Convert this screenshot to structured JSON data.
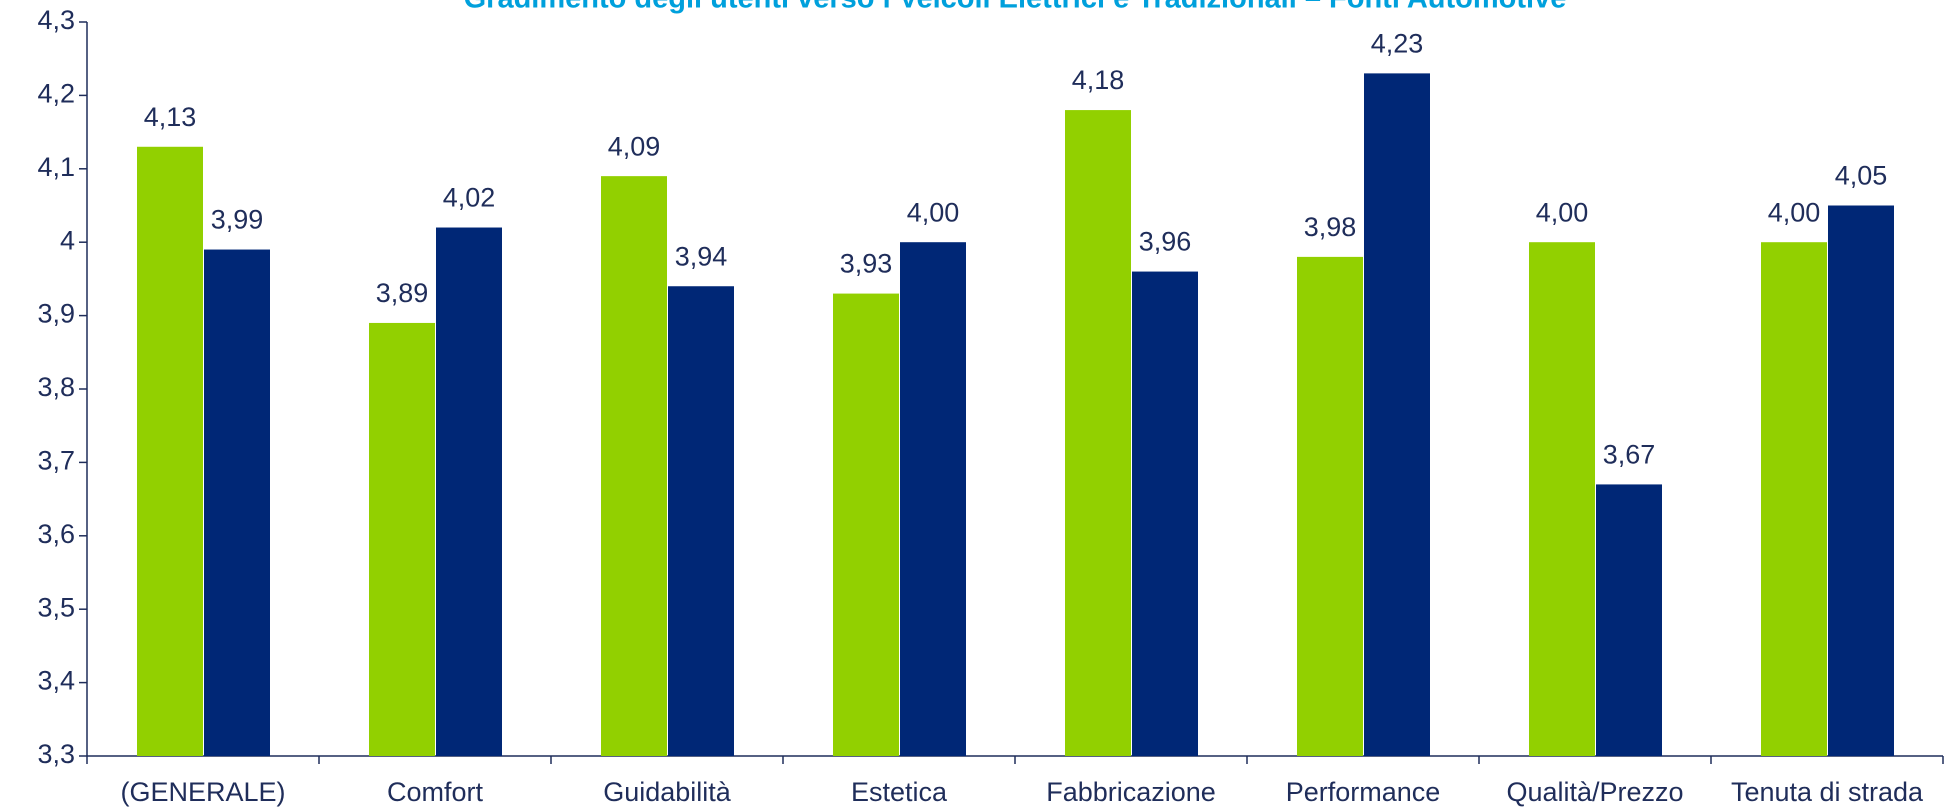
{
  "chart_data": {
    "type": "bar",
    "title": "Gradimento degli utenti verso i Veicoli Elettrici e Tradizionali – Fonti Automotive",
    "categories": [
      "(GENERALE)",
      "Comfort",
      "Guidabilità",
      "Estetica",
      "Fabbricazione",
      "Performance",
      "Qualità/Prezzo",
      "Tenuta di strada"
    ],
    "series": [
      {
        "color": "#92d000",
        "values": [
          4.13,
          3.89,
          4.09,
          3.93,
          4.18,
          3.98,
          4.0,
          4.0
        ],
        "value_labels": [
          "4,13",
          "3,89",
          "4,09",
          "3,93",
          "4,18",
          "3,98",
          "4,00",
          "4,00"
        ]
      },
      {
        "color": "#002776",
        "values": [
          3.99,
          4.02,
          3.94,
          4.0,
          3.96,
          4.23,
          3.67,
          4.05
        ],
        "value_labels": [
          "3,99",
          "4,02",
          "3,94",
          "4,00",
          "3,96",
          "4,23",
          "3,67",
          "4,05"
        ]
      }
    ],
    "ylim": [
      3.3,
      4.3
    ],
    "yticks": [
      {
        "value": 3.3,
        "label": "3,3"
      },
      {
        "value": 3.4,
        "label": "3,4"
      },
      {
        "value": 3.5,
        "label": "3,5"
      },
      {
        "value": 3.6,
        "label": "3,6"
      },
      {
        "value": 3.7,
        "label": "3,7"
      },
      {
        "value": 3.8,
        "label": "3,8"
      },
      {
        "value": 3.9,
        "label": "3,9"
      },
      4,
      {
        "value": 4.1,
        "label": "4,1"
      },
      {
        "value": 4.2,
        "label": "4,2"
      },
      {
        "value": 4.3,
        "label": "4,3"
      }
    ],
    "grid": false
  }
}
